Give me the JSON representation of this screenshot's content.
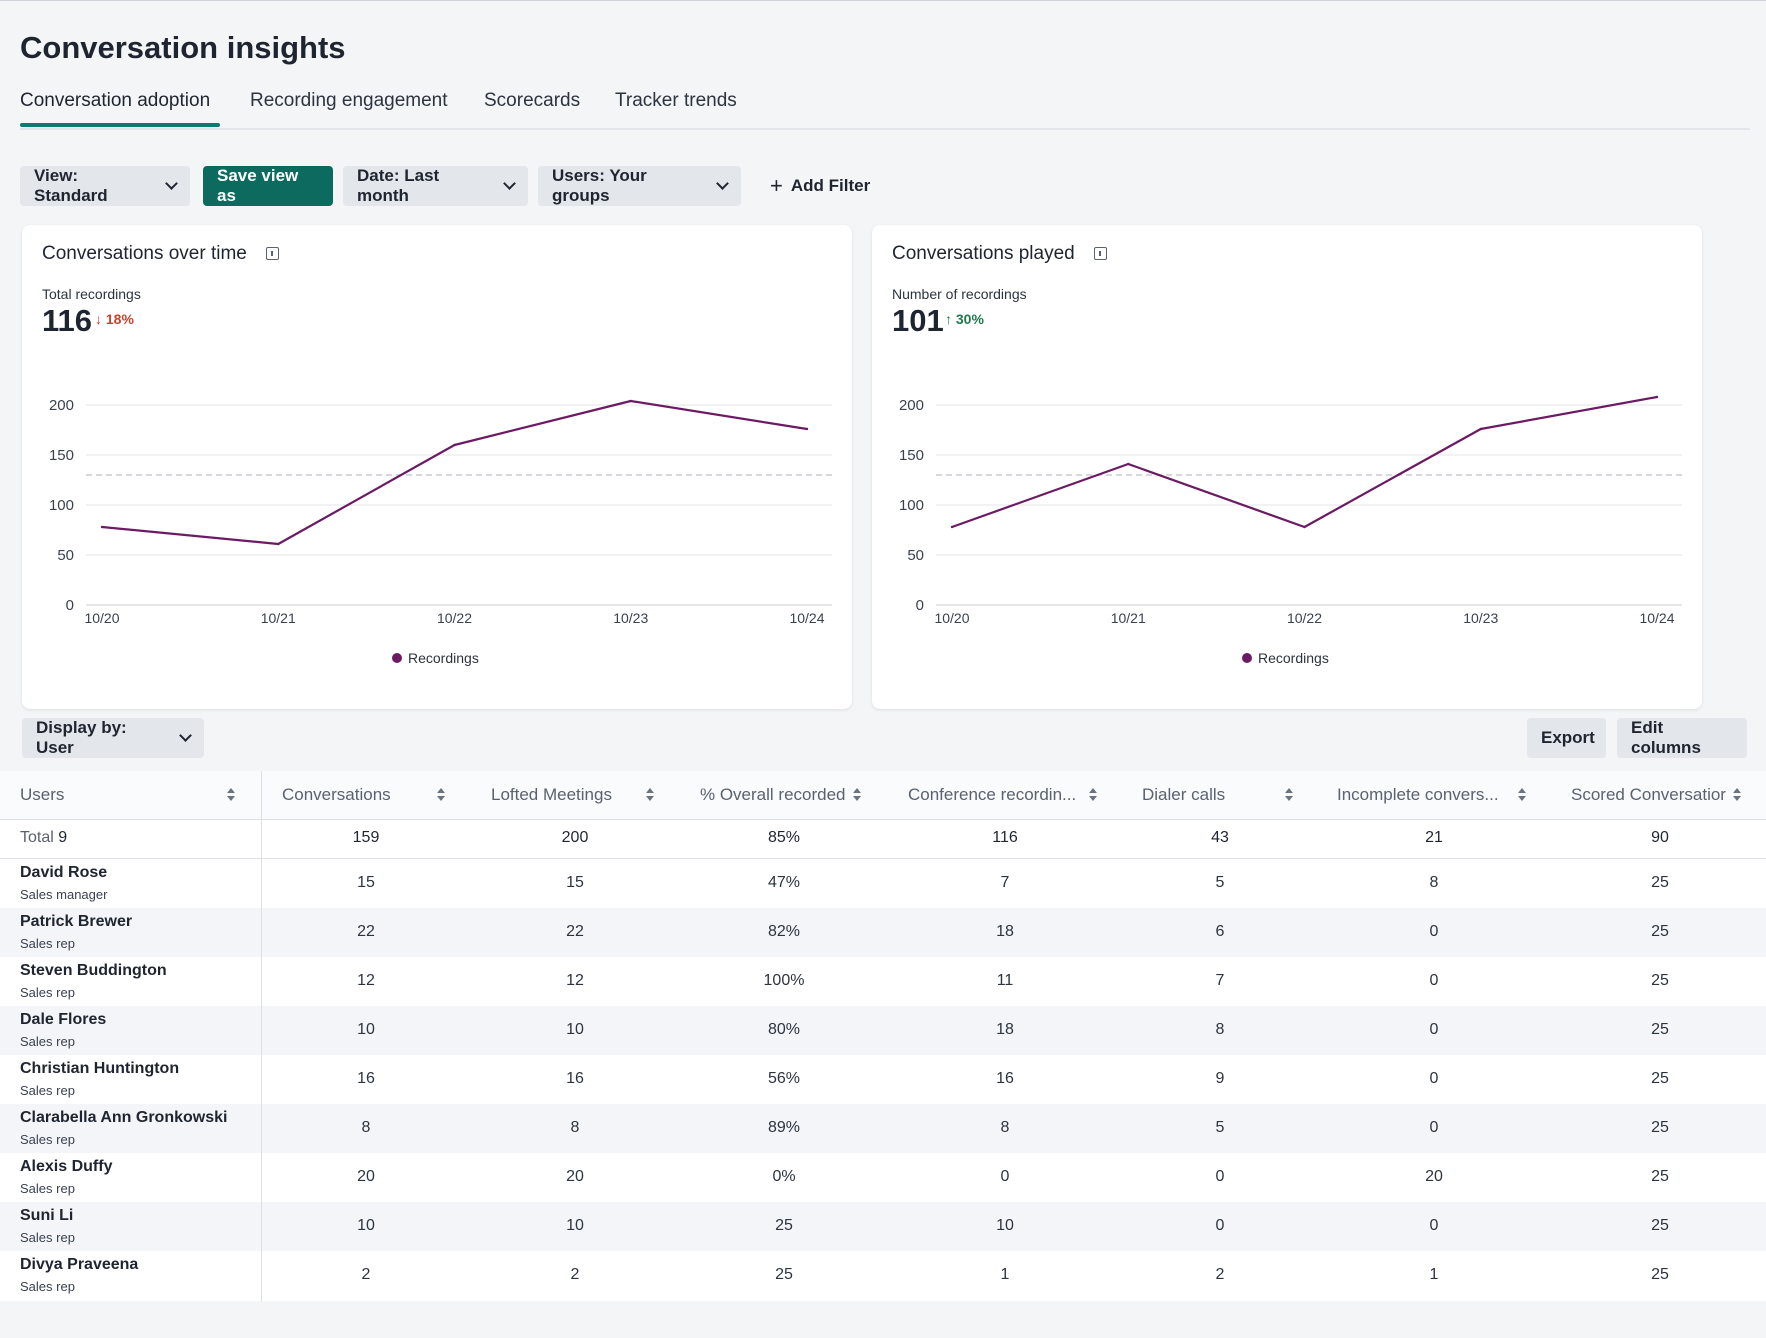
{
  "page": {
    "title": "Conversation insights"
  },
  "tabs": [
    {
      "label": "Conversation adoption",
      "active": true
    },
    {
      "label": "Recording engagement",
      "active": false
    },
    {
      "label": "Scorecards",
      "active": false
    },
    {
      "label": "Tracker trends",
      "active": false
    }
  ],
  "toolbar": {
    "view_label": "View: Standard",
    "save_view_label": "Save view as",
    "date_label": "Date: Last month",
    "users_label": "Users: Your groups",
    "add_filter_label": "Add Filter",
    "accent_color": "#0c6b5e"
  },
  "cards": [
    {
      "title": "Conversations over time",
      "metric_label": "Total recordings",
      "metric_value": "116",
      "delta_text": "18%",
      "delta_direction": "down",
      "legend": "Recordings"
    },
    {
      "title": "Conversations played",
      "metric_label": "Number of recordings",
      "metric_value": "101",
      "delta_text": "30%",
      "delta_direction": "up",
      "legend": "Recordings"
    }
  ],
  "chart_data": [
    {
      "type": "line",
      "title": "Conversations over time",
      "categories": [
        "10/20",
        "10/21",
        "10/22",
        "10/23",
        "10/24"
      ],
      "series": [
        {
          "name": "Recordings",
          "values": [
            78,
            61,
            160,
            204,
            176
          ],
          "color": "#6b1b63"
        }
      ],
      "reference_line": 130,
      "yticks": [
        0,
        50,
        100,
        150,
        200
      ],
      "ylim": [
        0,
        200
      ],
      "grid": true,
      "legend_position": "bottom"
    },
    {
      "type": "line",
      "title": "Conversations played",
      "categories": [
        "10/20",
        "10/21",
        "10/22",
        "10/23",
        "10/24"
      ],
      "series": [
        {
          "name": "Recordings",
          "values": [
            78,
            141,
            78,
            176,
            208
          ],
          "color": "#6b1b63"
        }
      ],
      "reference_line": 130,
      "yticks": [
        0,
        50,
        100,
        150,
        200
      ],
      "ylim": [
        0,
        200
      ],
      "grid": true,
      "legend_position": "bottom"
    }
  ],
  "table_controls": {
    "display_by_label": "Display by: User",
    "export_label": "Export",
    "edit_columns_label": "Edit columns"
  },
  "table": {
    "columns": [
      "Users",
      "Conversations",
      "Lofted Meetings",
      "% Overall recorded",
      "Conference recordin...",
      "Dialer calls",
      "Incomplete convers...",
      "Scored Conversatior"
    ],
    "total": {
      "label": "Total",
      "count": "9",
      "values": [
        "159",
        "200",
        "85%",
        "116",
        "43",
        "21",
        "90"
      ]
    },
    "rows": [
      {
        "name": "David Rose",
        "role": "Sales manager",
        "values": [
          "15",
          "15",
          "47%",
          "7",
          "5",
          "8",
          "25"
        ]
      },
      {
        "name": "Patrick Brewer",
        "role": "Sales rep",
        "values": [
          "22",
          "22",
          "82%",
          "18",
          "6",
          "0",
          "25"
        ]
      },
      {
        "name": "Steven Buddington",
        "role": "Sales rep",
        "values": [
          "12",
          "12",
          "100%",
          "11",
          "7",
          "0",
          "25"
        ]
      },
      {
        "name": "Dale Flores",
        "role": "Sales rep",
        "values": [
          "10",
          "10",
          "80%",
          "18",
          "8",
          "0",
          "25"
        ]
      },
      {
        "name": "Christian Huntington",
        "role": "Sales rep",
        "values": [
          "16",
          "16",
          "56%",
          "16",
          "9",
          "0",
          "25"
        ]
      },
      {
        "name": "Clarabella Ann Gronkowski",
        "role": "Sales rep",
        "values": [
          "8",
          "8",
          "89%",
          "8",
          "5",
          "0",
          "25"
        ]
      },
      {
        "name": "Alexis Duffy",
        "role": "Sales rep",
        "values": [
          "20",
          "20",
          "0%",
          "0",
          "0",
          "20",
          "25"
        ]
      },
      {
        "name": "Suni Li",
        "role": "Sales rep",
        "values": [
          "10",
          "10",
          "25",
          "10",
          "0",
          "0",
          "25"
        ]
      },
      {
        "name": "Divya Praveena",
        "role": "Sales rep",
        "values": [
          "2",
          "2",
          "25",
          "1",
          "2",
          "1",
          "25"
        ]
      }
    ]
  }
}
